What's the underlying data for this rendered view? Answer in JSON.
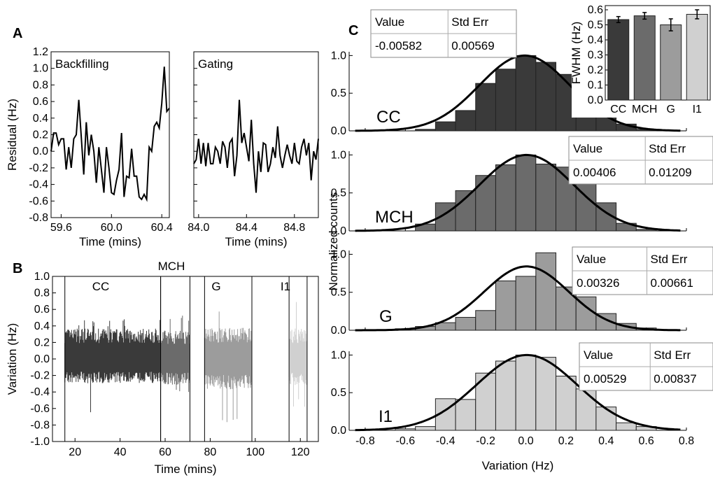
{
  "panel_labels": [
    "A",
    "B",
    "C"
  ],
  "colors": {
    "CC": "#3a3a3a",
    "MCH": "#6b6b6b",
    "G": "#9c9c9c",
    "I1": "#d0d0d0"
  },
  "chart_data": [
    {
      "id": "A-backfilling",
      "type": "line",
      "annotation": "Backfilling",
      "xlabel": "Time (mins)",
      "ylabel": "Residual (Hz)",
      "xlim": [
        59.52,
        60.46
      ],
      "ylim": [
        -0.8,
        1.2
      ],
      "xticks": [
        "59.6",
        "60.0",
        "60.4"
      ],
      "yticks": [
        "-0.8",
        "-0.6",
        "-0.4",
        "-0.2",
        "0.0",
        "0.2",
        "0.4",
        "0.6",
        "0.8",
        "1.0",
        "1.2"
      ],
      "x": [
        59.52,
        59.54,
        59.56,
        59.58,
        59.6,
        59.62,
        59.64,
        59.66,
        59.68,
        59.7,
        59.72,
        59.74,
        59.76,
        59.78,
        59.8,
        59.82,
        59.84,
        59.86,
        59.88,
        59.9,
        59.92,
        59.94,
        59.96,
        59.98,
        60.0,
        60.02,
        60.04,
        60.06,
        60.08,
        60.1,
        60.12,
        60.14,
        60.16,
        60.18,
        60.2,
        60.22,
        60.24,
        60.26,
        60.28,
        60.3,
        60.32,
        60.34,
        60.36,
        60.38,
        60.4,
        60.42,
        60.44,
        60.46
      ],
      "y": [
        0.0,
        0.22,
        0.22,
        0.08,
        0.15,
        0.15,
        -0.22,
        0.05,
        -0.2,
        0.15,
        0.2,
        0.62,
        0.18,
        -0.28,
        0.35,
        -0.05,
        0.2,
        0.0,
        -0.38,
        0.05,
        -0.22,
        -0.5,
        0.05,
        -0.2,
        -0.5,
        -0.52,
        -0.35,
        -0.22,
        0.22,
        -0.55,
        -0.3,
        -0.32,
        0.03,
        -0.3,
        -0.3,
        -0.55,
        -0.58,
        -0.52,
        -0.58,
        0.05,
        0.0,
        0.3,
        0.35,
        0.28,
        0.58,
        1.02,
        0.48,
        0.52
      ]
    },
    {
      "id": "A-gating",
      "type": "line",
      "annotation": "Gating",
      "xlabel": "Time (mins)",
      "xlim": [
        83.96,
        85.0
      ],
      "ylim": [
        -0.8,
        1.2
      ],
      "xticks": [
        "84.0",
        "84.4",
        "84.8"
      ],
      "x": [
        83.96,
        83.98,
        84.0,
        84.02,
        84.04,
        84.06,
        84.08,
        84.1,
        84.12,
        84.14,
        84.16,
        84.18,
        84.2,
        84.22,
        84.24,
        84.26,
        84.28,
        84.3,
        84.32,
        84.34,
        84.36,
        84.38,
        84.4,
        84.42,
        84.44,
        84.46,
        84.48,
        84.5,
        84.52,
        84.54,
        84.56,
        84.58,
        84.6,
        84.62,
        84.64,
        84.66,
        84.68,
        84.7,
        84.72,
        84.74,
        84.76,
        84.78,
        84.8,
        84.82,
        84.84,
        84.86,
        84.88,
        84.9,
        84.92,
        84.94,
        84.96,
        84.98,
        85.0
      ],
      "y": [
        -0.15,
        -0.1,
        0.15,
        -0.15,
        0.1,
        -0.18,
        0.1,
        -0.15,
        -0.15,
        0.05,
        0.0,
        -0.15,
        0.12,
        0.05,
        -0.2,
        0.1,
        0.15,
        -0.3,
        -0.05,
        0.62,
        0.1,
        0.22,
        0.05,
        -0.12,
        0.38,
        -0.15,
        -0.5,
        0.0,
        -0.25,
        0.1,
        0.08,
        -0.25,
        -0.15,
        0.05,
        -0.08,
        0.3,
        -0.05,
        -0.2,
        -0.05,
        0.08,
        -0.05,
        -0.15,
        0.1,
        -0.12,
        -0.15,
        0.05,
        0.15,
        -0.05,
        0.1,
        -0.35,
        0.0,
        -0.1,
        0.15
      ]
    },
    {
      "id": "B",
      "type": "area",
      "xlabel": "Time (mins)",
      "ylabel": "Variation (Hz)",
      "xlim": [
        10,
        128
      ],
      "ylim": [
        -1.0,
        1.0
      ],
      "xticks": [
        "20",
        "40",
        "60",
        "80",
        "100",
        "120"
      ],
      "yticks": [
        "-1.0",
        "-0.8",
        "-0.6",
        "-0.4",
        "-0.2",
        "0.0",
        "0.2",
        "0.4",
        "0.6",
        "0.8",
        "1.0"
      ],
      "series": [
        {
          "name": "CC",
          "x_range": [
            15.5,
            58
          ],
          "typical_range": [
            -0.28,
            0.35
          ],
          "min": -0.75,
          "max": 0.48
        },
        {
          "name": "MCH",
          "x_range": [
            58,
            71
          ],
          "typical_range": [
            -0.3,
            0.33
          ],
          "min": -0.45,
          "max": 0.55
        },
        {
          "name": "G",
          "x_range": [
            77.5,
            98.5
          ],
          "typical_range": [
            -0.35,
            0.36
          ],
          "min": -0.82,
          "max": 0.65
        },
        {
          "name": "I1",
          "x_range": [
            115,
            123
          ],
          "typical_range": [
            -0.3,
            0.35
          ],
          "min": -0.58,
          "max": 0.75
        }
      ]
    },
    {
      "id": "C-CC",
      "type": "bar",
      "label": "CC",
      "bin_centers": [
        -0.7,
        -0.6,
        -0.5,
        -0.4,
        -0.3,
        -0.2,
        -0.1,
        0.0,
        0.1,
        0.2,
        0.3,
        0.4,
        0.5,
        0.6,
        0.7
      ],
      "values": [
        0.0,
        0.0,
        0.02,
        0.12,
        0.27,
        0.63,
        0.82,
        1.0,
        0.91,
        0.75,
        0.51,
        0.25,
        0.09,
        0.02,
        0.0
      ],
      "fit": {
        "mean": -0.00582,
        "sigma": 0.225,
        "amp": 1.0
      },
      "table": {
        "headers": [
          "Value",
          "Std Err"
        ],
        "row": [
          "-0.00582",
          "0.00569"
        ]
      }
    },
    {
      "id": "C-MCH",
      "type": "bar",
      "label": "MCH",
      "bin_centers": [
        -0.7,
        -0.6,
        -0.5,
        -0.4,
        -0.3,
        -0.2,
        -0.1,
        0.0,
        0.1,
        0.2,
        0.3,
        0.4,
        0.5,
        0.6,
        0.7
      ],
      "values": [
        0.0,
        0.0,
        0.09,
        0.37,
        0.53,
        0.73,
        0.87,
        1.0,
        0.88,
        0.84,
        0.67,
        0.37,
        0.1,
        0.02,
        0.0
      ],
      "fit": {
        "mean": 0.00406,
        "sigma": 0.235,
        "amp": 1.0
      },
      "table": {
        "headers": [
          "Value",
          "Std Err"
        ],
        "row": [
          "0.00406",
          "0.01209"
        ]
      }
    },
    {
      "id": "C-G",
      "type": "bar",
      "label": "G",
      "bin_centers": [
        -0.7,
        -0.6,
        -0.5,
        -0.4,
        -0.3,
        -0.2,
        -0.1,
        0.0,
        0.1,
        0.2,
        0.3,
        0.4,
        0.5,
        0.6,
        0.7
      ],
      "values": [
        0.0,
        0.02,
        0.05,
        0.1,
        0.17,
        0.26,
        0.65,
        0.71,
        1.02,
        0.57,
        0.44,
        0.22,
        0.09,
        0.03,
        0.0
      ],
      "fit": {
        "mean": 0.00326,
        "sigma": 0.21,
        "amp": 0.84
      },
      "table": {
        "headers": [
          "Value",
          "Std Err"
        ],
        "row": [
          "0.00326",
          "0.00661"
        ]
      }
    },
    {
      "id": "C-I1",
      "type": "bar",
      "label": "I1",
      "bin_centers": [
        -0.7,
        -0.6,
        -0.5,
        -0.4,
        -0.3,
        -0.2,
        -0.1,
        0.0,
        0.1,
        0.2,
        0.3,
        0.4,
        0.5,
        0.6,
        0.7
      ],
      "values": [
        0.0,
        0.02,
        0.05,
        0.42,
        0.41,
        0.76,
        0.92,
        1.0,
        0.97,
        0.72,
        0.55,
        0.31,
        0.1,
        0.05,
        0.0
      ],
      "fit": {
        "mean": 0.00529,
        "sigma": 0.25,
        "amp": 1.0
      },
      "table": {
        "headers": [
          "Value",
          "Std Err"
        ],
        "row": [
          "0.00529",
          "0.00837"
        ]
      }
    },
    {
      "id": "C-axes",
      "type": "bar",
      "xlabel": "Variation (Hz)",
      "ylabel": "Normalized counts",
      "xlim": [
        -0.88,
        0.8
      ],
      "ylim": [
        0.0,
        1.05
      ],
      "xticks": [
        "-0.8",
        "-0.6",
        "-0.4",
        "-0.2",
        "0.0",
        "0.2",
        "0.4",
        "0.6",
        "0.8"
      ],
      "yticks": [
        "0.0",
        "0.5",
        "1.0"
      ]
    },
    {
      "id": "C-inset",
      "type": "bar",
      "ylabel": "FWHM (Hz)",
      "ylim": [
        0.0,
        0.6
      ],
      "yticks": [
        "0.0",
        "0.1",
        "0.2",
        "0.3",
        "0.4",
        "0.5",
        "0.6"
      ],
      "categories": [
        "CC",
        "MCH",
        "G",
        "I1"
      ],
      "values": [
        0.535,
        0.56,
        0.5,
        0.57
      ],
      "errors": [
        0.02,
        0.022,
        0.04,
        0.03
      ]
    }
  ]
}
